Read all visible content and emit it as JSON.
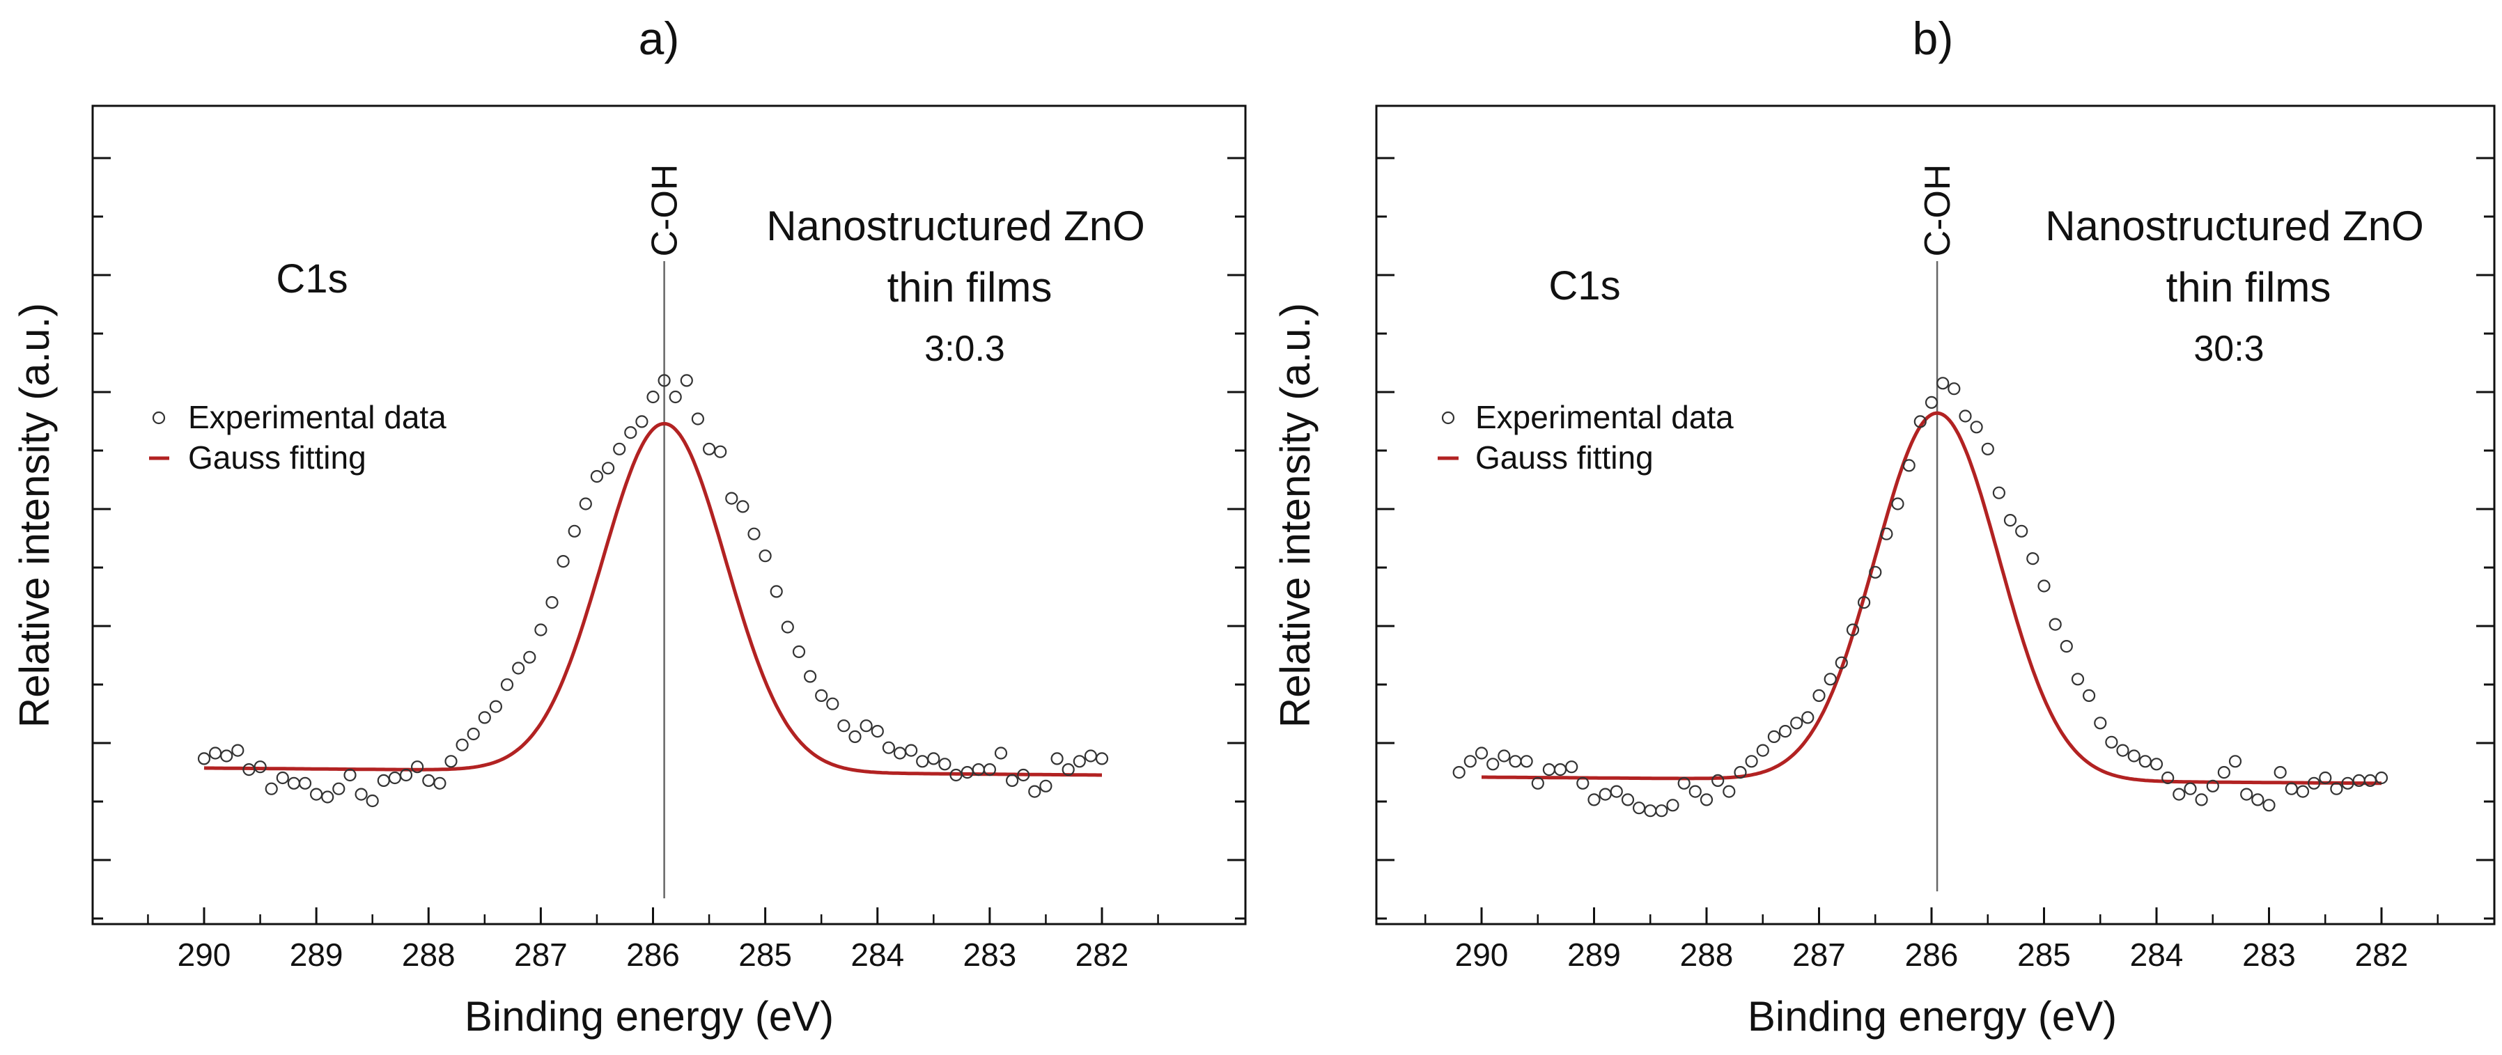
{
  "chart_data": [
    {
      "type": "scatter",
      "panel_label": "a)",
      "title": "",
      "xlabel": "Binding energy (eV)",
      "ylabel": "Relative intensity (a.u.)",
      "xlim": [
        291.2,
        280.8
      ],
      "ylim": [
        0,
        1
      ],
      "x_reversed": true,
      "x_ticks": [
        290,
        289,
        288,
        287,
        286,
        285,
        284,
        283,
        282
      ],
      "x_tick_labels": [
        "290",
        "289",
        "288",
        "287",
        "286",
        "285",
        "284",
        "283",
        "282"
      ],
      "y_tick_labels_shown": false,
      "grid": false,
      "annotations": {
        "peak_label": "C-OH",
        "peak_position": 285.9,
        "region_label": "C1s",
        "title_line1": "Nanostructured ZnO",
        "title_line2": "thin films",
        "ratio": "3:0.3"
      },
      "legend": {
        "position": "left",
        "items": [
          {
            "label": "Experimental data",
            "marker": "circle"
          },
          {
            "label": "Gauss fitting",
            "marker": "line"
          }
        ]
      },
      "fit": {
        "center": 285.9,
        "sigma": 0.55,
        "amplitude": 0.635,
        "baseline": 0.155,
        "slope": 0.0016
      },
      "series": [
        {
          "name": "Experimental data",
          "x": [
            290.0,
            289.9,
            289.8,
            289.7,
            289.6,
            289.5,
            289.4,
            289.3,
            289.2,
            289.1,
            289.0,
            288.9,
            288.8,
            288.7,
            288.6,
            288.5,
            288.4,
            288.3,
            288.2,
            288.1,
            288.0,
            287.9,
            287.8,
            287.7,
            287.6,
            287.5,
            287.4,
            287.3,
            287.2,
            287.1,
            287.0,
            286.9,
            286.8,
            286.7,
            286.6,
            286.5,
            286.4,
            286.3,
            286.2,
            286.1,
            286.0,
            285.9,
            285.8,
            285.7,
            285.6,
            285.5,
            285.4,
            285.3,
            285.2,
            285.1,
            285.0,
            284.9,
            284.8,
            284.7,
            284.6,
            284.5,
            284.4,
            284.3,
            284.2,
            284.1,
            284.0,
            283.9,
            283.8,
            283.7,
            283.6,
            283.5,
            283.4,
            283.3,
            283.2,
            283.1,
            283.0,
            282.9,
            282.8,
            282.7,
            282.6,
            282.5,
            282.4,
            282.3,
            282.2,
            282.1,
            282.0
          ],
          "values": [
            0.185,
            0.195,
            0.19,
            0.2,
            0.165,
            0.17,
            0.13,
            0.15,
            0.14,
            0.14,
            0.12,
            0.115,
            0.13,
            0.155,
            0.12,
            0.108,
            0.145,
            0.15,
            0.155,
            0.17,
            0.145,
            0.14,
            0.18,
            0.21,
            0.23,
            0.26,
            0.28,
            0.32,
            0.35,
            0.37,
            0.42,
            0.47,
            0.545,
            0.6,
            0.65,
            0.7,
            0.715,
            0.75,
            0.78,
            0.8,
            0.845,
            0.875,
            0.845,
            0.875,
            0.805,
            0.75,
            0.745,
            0.66,
            0.645,
            0.595,
            0.555,
            0.49,
            0.425,
            0.38,
            0.335,
            0.3,
            0.285,
            0.245,
            0.225,
            0.245,
            0.235,
            0.205,
            0.195,
            0.2,
            0.18,
            0.185,
            0.175,
            0.155,
            0.16,
            0.165,
            0.165,
            0.195,
            0.145,
            0.155,
            0.125,
            0.135,
            0.185,
            0.165,
            0.18,
            0.19,
            0.185
          ]
        }
      ]
    },
    {
      "type": "scatter",
      "panel_label": "b)",
      "title": "",
      "xlabel": "Binding energy (eV)",
      "ylabel": "Relative intensity (a.u.)",
      "xlim": [
        291.2,
        280.8
      ],
      "ylim": [
        0,
        1
      ],
      "x_reversed": true,
      "x_ticks": [
        290,
        289,
        288,
        287,
        286,
        285,
        284,
        283,
        282
      ],
      "x_tick_labels": [
        "290",
        "289",
        "288",
        "287",
        "286",
        "285",
        "284",
        "283",
        "282"
      ],
      "y_tick_labels_shown": false,
      "grid": false,
      "annotations": {
        "peak_label": "C-OH",
        "peak_position": 285.95,
        "region_label": "C1s",
        "title_line1": "Nanostructured ZnO",
        "title_line2": "thin films",
        "ratio": "30:3"
      },
      "legend": {
        "position": "left",
        "items": [
          {
            "label": "Experimental data",
            "marker": "circle"
          },
          {
            "label": "Gauss fitting",
            "marker": "line"
          }
        ]
      },
      "fit": {
        "center": 285.95,
        "sigma": 0.55,
        "amplitude": 0.67,
        "baseline": 0.14,
        "slope": 0.0014
      },
      "series": [
        {
          "name": "Experimental data",
          "x": [
            290.2,
            290.1,
            290.0,
            289.9,
            289.8,
            289.7,
            289.6,
            289.5,
            289.4,
            289.3,
            289.2,
            289.1,
            289.0,
            288.9,
            288.8,
            288.7,
            288.6,
            288.5,
            288.4,
            288.3,
            288.2,
            288.1,
            288.0,
            287.9,
            287.8,
            287.7,
            287.6,
            287.5,
            287.4,
            287.3,
            287.2,
            287.1,
            287.0,
            286.9,
            286.8,
            286.7,
            286.6,
            286.5,
            286.4,
            286.3,
            286.2,
            286.1,
            286.0,
            285.9,
            285.8,
            285.7,
            285.6,
            285.5,
            285.4,
            285.3,
            285.2,
            285.1,
            285.0,
            284.9,
            284.8,
            284.7,
            284.6,
            284.5,
            284.4,
            284.3,
            284.2,
            284.1,
            284.0,
            283.9,
            283.8,
            283.7,
            283.6,
            283.5,
            283.4,
            283.3,
            283.2,
            283.1,
            283.0,
            282.9,
            282.8,
            282.7,
            282.6,
            282.5,
            282.4,
            282.3,
            282.2,
            282.1,
            282.0
          ],
          "values": [
            0.16,
            0.18,
            0.195,
            0.175,
            0.19,
            0.18,
            0.18,
            0.14,
            0.165,
            0.165,
            0.17,
            0.14,
            0.11,
            0.12,
            0.125,
            0.11,
            0.095,
            0.09,
            0.09,
            0.1,
            0.14,
            0.125,
            0.11,
            0.145,
            0.125,
            0.16,
            0.18,
            0.2,
            0.225,
            0.235,
            0.25,
            0.26,
            0.3,
            0.33,
            0.36,
            0.42,
            0.47,
            0.525,
            0.595,
            0.65,
            0.72,
            0.8,
            0.835,
            0.87,
            0.86,
            0.81,
            0.79,
            0.75,
            0.67,
            0.62,
            0.6,
            0.55,
            0.5,
            0.43,
            0.39,
            0.33,
            0.3,
            0.25,
            0.215,
            0.2,
            0.19,
            0.18,
            0.175,
            0.15,
            0.12,
            0.13,
            0.11,
            0.135,
            0.16,
            0.18,
            0.12,
            0.11,
            0.1,
            0.16,
            0.13,
            0.125,
            0.14,
            0.15,
            0.13,
            0.14,
            0.145,
            0.145,
            0.15
          ]
        }
      ]
    }
  ]
}
